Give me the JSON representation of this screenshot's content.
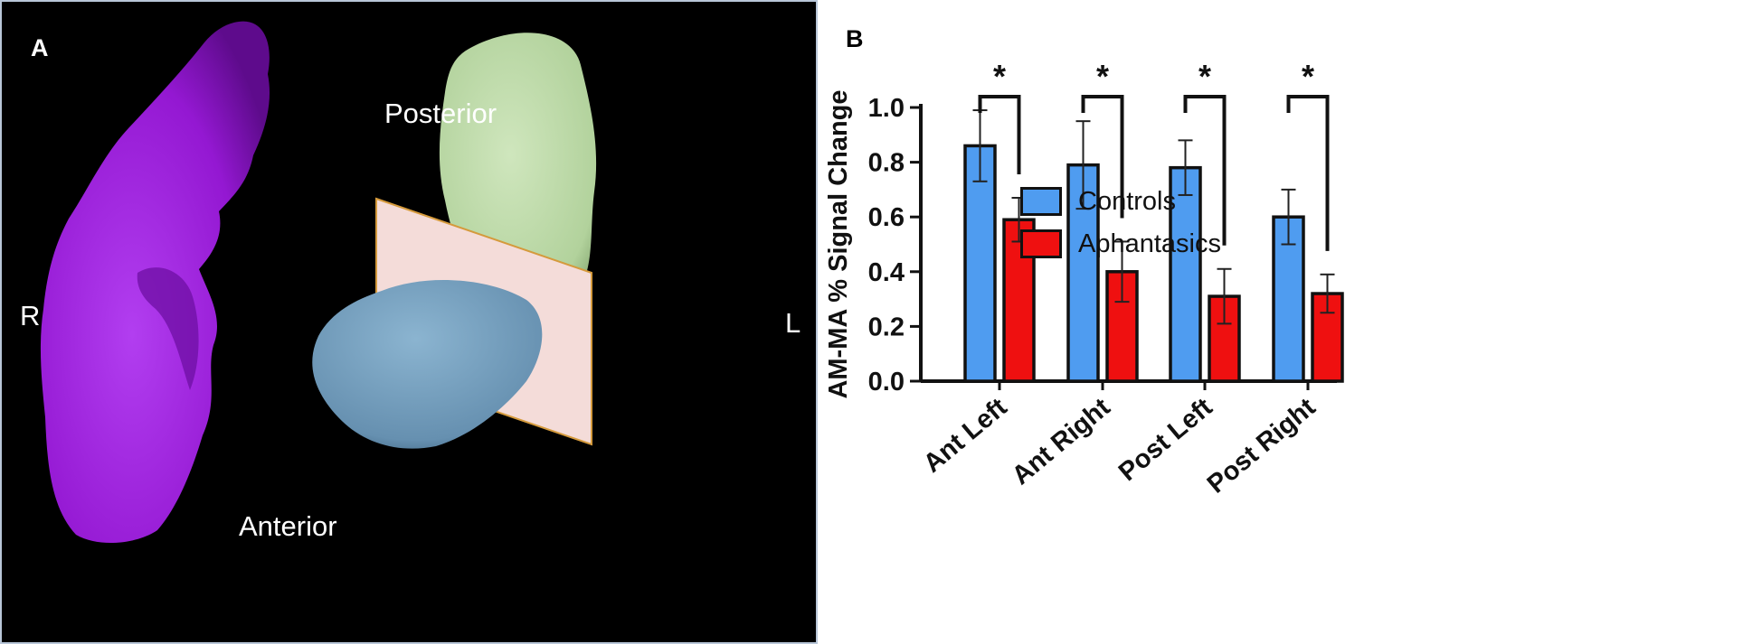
{
  "panel_a": {
    "letter": "A",
    "labels": {
      "right": "R",
      "left": "L",
      "posterior": "Posterior",
      "anterior": "Anterior"
    },
    "colors": {
      "background": "#000000",
      "hippocampus_right": "#9a1fd8",
      "posterior_segment": "#b9d8a4",
      "anterior_segment": "#6f9bbb",
      "plane": "#f3d9d6"
    }
  },
  "panel_b": {
    "letter": "B"
  },
  "chart_data": {
    "type": "bar",
    "categories": [
      "Ant Left",
      "Ant Right",
      "Post Left",
      "Post Right"
    ],
    "series": [
      {
        "name": "Controls",
        "color": "#4f9cf0",
        "values": [
          0.86,
          0.79,
          0.78,
          0.6
        ],
        "error": [
          0.13,
          0.16,
          0.1,
          0.1
        ]
      },
      {
        "name": "Aphantasics",
        "color": "#ef1010",
        "values": [
          0.59,
          0.4,
          0.31,
          0.32
        ],
        "error": [
          0.08,
          0.11,
          0.1,
          0.07
        ]
      }
    ],
    "ylabel": "AM-MA % Signal Change",
    "xlabel": "",
    "ylim": [
      0,
      1.0
    ],
    "yticks": [
      "0.0",
      "0.2",
      "0.4",
      "0.6",
      "0.8",
      "1.0"
    ],
    "significance": [
      "*",
      "*",
      "*",
      "*"
    ],
    "legend_position": "right"
  }
}
